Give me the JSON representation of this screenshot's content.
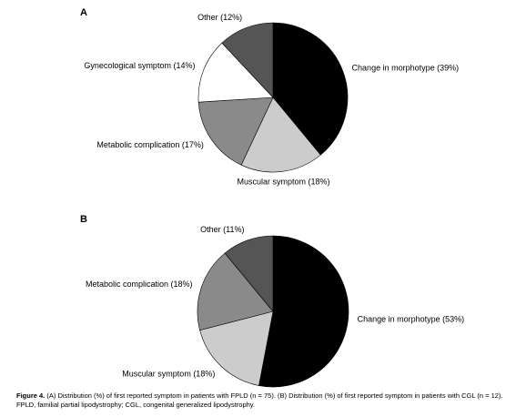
{
  "chart_data": [
    {
      "type": "pie",
      "title": "A",
      "categories": [
        "Change in morphotype (39%)",
        "Muscular symptom (18%)",
        "Metabolic complication (17%)",
        "Gynecological symptom (14%)",
        "Other (12%)"
      ],
      "values": [
        39,
        18,
        17,
        14,
        12
      ],
      "colors": [
        "#000000",
        "#cccccc",
        "#8a8a8a",
        "#ffffff",
        "#555555"
      ]
    },
    {
      "type": "pie",
      "title": "B",
      "categories": [
        "Change in morphotype (53%)",
        "Muscular symptom (18%)",
        "Metabolic complication (18%)",
        "Other (11%)"
      ],
      "values": [
        53,
        18,
        18,
        11
      ],
      "colors": [
        "#000000",
        "#cccccc",
        "#8a8a8a",
        "#555555"
      ]
    }
  ],
  "caption": {
    "label": "Figure 4.",
    "text": "(A) Distribution (%) of first reported symptom in patients with FPLD (n = 75). (B) Distribution (%) of first reported symptom in patients with CGL (n = 12). FPLD, familial partial lipodystrophy; CGL, congenital generalized lipodystrophy."
  }
}
